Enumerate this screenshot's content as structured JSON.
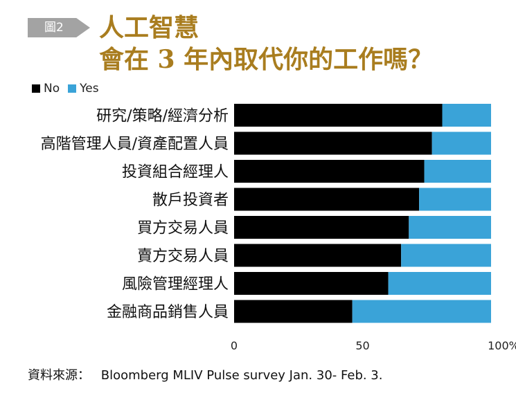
{
  "badge": "圖2",
  "title_line1": "人工智慧",
  "title_line2": "會在 3 年內取代你的工作嗎？",
  "source_label": "資料來源：",
  "source_text": "Bloomberg MLIV Pulse survey Jan. 30- Feb. 3.",
  "colors": {
    "no": "#000000",
    "yes": "#3aa3d8",
    "title": "#a97d1f"
  },
  "chart_data": {
    "type": "bar",
    "orientation": "horizontal",
    "stacked": true,
    "title": "",
    "xlabel": "",
    "ylabel": "",
    "xlim": [
      0,
      100
    ],
    "legend": {
      "placement": "top-left",
      "entries": [
        "No",
        "Yes"
      ]
    },
    "categories": [
      "研究/策略/經濟分析",
      "高階管理人員/資產配置人員",
      "投資組合經理人",
      "散戶投資者",
      "買方交易人員",
      "賣方交易人員",
      "風險管理經理人",
      "金融商品銷售人員"
    ],
    "series": [
      {
        "name": "No",
        "values": [
          81,
          77,
          74,
          72,
          68,
          65,
          60,
          46
        ]
      },
      {
        "name": "Yes",
        "values": [
          19,
          23,
          26,
          28,
          32,
          35,
          40,
          54
        ]
      }
    ],
    "x_ticks": [
      "0",
      "50",
      "100%"
    ]
  }
}
